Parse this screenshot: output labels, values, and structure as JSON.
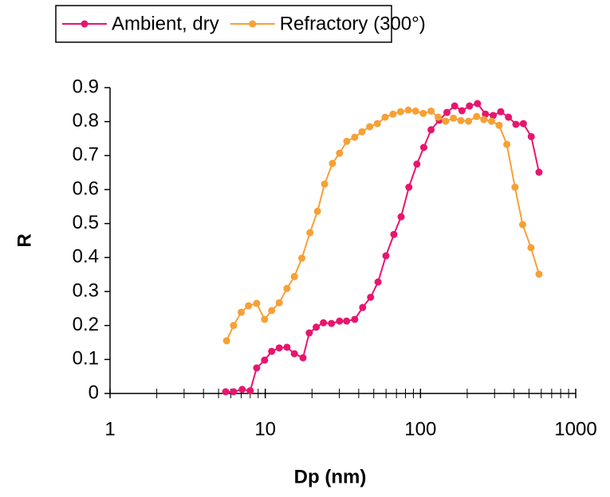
{
  "chart_data": {
    "type": "line",
    "x_label": "Dp (nm)",
    "y_label": "R",
    "xscale": "log",
    "xlim": [
      1,
      1000
    ],
    "xticks": [
      1,
      10,
      100,
      1000
    ],
    "ylim": [
      0,
      0.9
    ],
    "yticks": [
      0,
      0.1,
      0.2,
      0.3,
      0.4,
      0.5,
      0.6,
      0.7,
      0.8,
      0.9
    ],
    "grid": false,
    "legend": "top",
    "series": [
      {
        "name": "Ambient, dry",
        "color": "#e8156f",
        "x": [
          5.56,
          6.25,
          7.1,
          8.0,
          8.8,
          9.9,
          11.0,
          12.3,
          13.8,
          15.4,
          17.5,
          19.2,
          21.3,
          23.7,
          26.7,
          30.1,
          33.4,
          37.7,
          42.4,
          47.7,
          53.3,
          59.9,
          67.4,
          75.0,
          84.2,
          94.8,
          105,
          117,
          132,
          148,
          166,
          185,
          207,
          233,
          262,
          294,
          329,
          369,
          412,
          460,
          517,
          580
        ],
        "values": [
          0.005,
          0.005,
          0.012,
          0.008,
          0.075,
          0.098,
          0.124,
          0.134,
          0.136,
          0.117,
          0.105,
          0.178,
          0.195,
          0.208,
          0.206,
          0.213,
          0.213,
          0.218,
          0.253,
          0.283,
          0.328,
          0.405,
          0.468,
          0.52,
          0.607,
          0.675,
          0.724,
          0.776,
          0.804,
          0.827,
          0.846,
          0.832,
          0.846,
          0.853,
          0.822,
          0.818,
          0.829,
          0.813,
          0.792,
          0.794,
          0.756,
          0.651
        ]
      },
      {
        "name": "Refractory (300°)",
        "color": "#f7a035",
        "x": [
          5.63,
          6.25,
          7.0,
          7.8,
          8.8,
          9.9,
          11.0,
          12.3,
          13.8,
          15.4,
          17.2,
          19.4,
          21.7,
          24.1,
          27.1,
          30.1,
          33.5,
          37.7,
          42.0,
          47.1,
          52.7,
          59.2,
          66.5,
          74.4,
          83.5,
          93.0,
          104,
          117,
          130,
          145,
          163,
          182,
          204,
          230,
          256,
          287,
          321,
          360,
          406,
          455,
          515,
          580
        ],
        "values": [
          0.155,
          0.2,
          0.239,
          0.258,
          0.265,
          0.218,
          0.244,
          0.267,
          0.309,
          0.344,
          0.398,
          0.473,
          0.536,
          0.616,
          0.677,
          0.707,
          0.742,
          0.754,
          0.77,
          0.785,
          0.794,
          0.813,
          0.822,
          0.829,
          0.834,
          0.831,
          0.824,
          0.831,
          0.813,
          0.801,
          0.81,
          0.803,
          0.801,
          0.815,
          0.806,
          0.801,
          0.789,
          0.733,
          0.607,
          0.497,
          0.429,
          0.351
        ]
      }
    ]
  }
}
